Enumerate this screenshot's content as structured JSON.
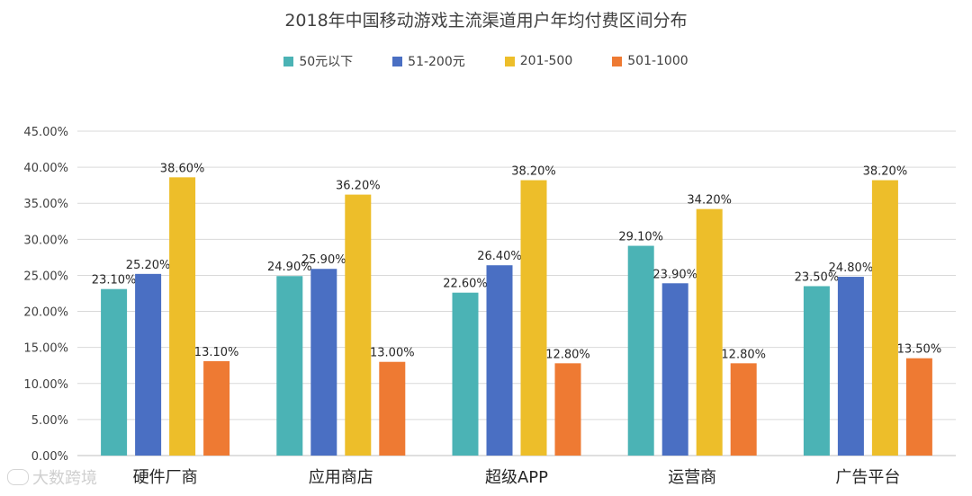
{
  "chart_data": {
    "type": "bar",
    "title": "2018年中国移动游戏主流渠道用户年均付费区间分布",
    "categories": [
      "硬件厂商",
      "应用商店",
      "超级APP",
      "运营商",
      "广告平台"
    ],
    "series": [
      {
        "name": "50元以下",
        "color": "#4BB3B5",
        "values": [
          23.1,
          24.9,
          22.6,
          29.1,
          23.5
        ],
        "labels": [
          "23.10%",
          "24.90%",
          "22.60%",
          "29.10%",
          "23.50%"
        ]
      },
      {
        "name": "51-200元",
        "color": "#4A6FC3",
        "values": [
          25.2,
          25.9,
          26.4,
          23.9,
          24.8
        ],
        "labels": [
          "25.20%",
          "25.90%",
          "26.40%",
          "23.90%",
          "24.80%"
        ]
      },
      {
        "name": "201-500",
        "color": "#EDBE2A",
        "values": [
          38.6,
          36.2,
          38.2,
          34.2,
          38.2
        ],
        "labels": [
          "38.60%",
          "36.20%",
          "38.20%",
          "34.20%",
          "38.20%"
        ]
      },
      {
        "name": "501-1000",
        "color": "#EE7A33",
        "values": [
          13.1,
          13.0,
          12.8,
          12.8,
          13.5
        ],
        "labels": [
          "13.10%",
          "13.00%",
          "12.80%",
          "12.80%",
          "13.50%"
        ]
      }
    ],
    "ylim": [
      0,
      45
    ],
    "yticks": [
      0,
      5,
      10,
      15,
      20,
      25,
      30,
      35,
      40,
      45
    ],
    "ytick_labels": [
      "0.00%",
      "5.00%",
      "10.00%",
      "15.00%",
      "20.00%",
      "25.00%",
      "30.00%",
      "35.00%",
      "40.00%",
      "45.00%"
    ],
    "grid": true,
    "legend": "top-center",
    "xlabel": "",
    "ylabel": ""
  },
  "watermark": {
    "text": "大数跨境"
  }
}
